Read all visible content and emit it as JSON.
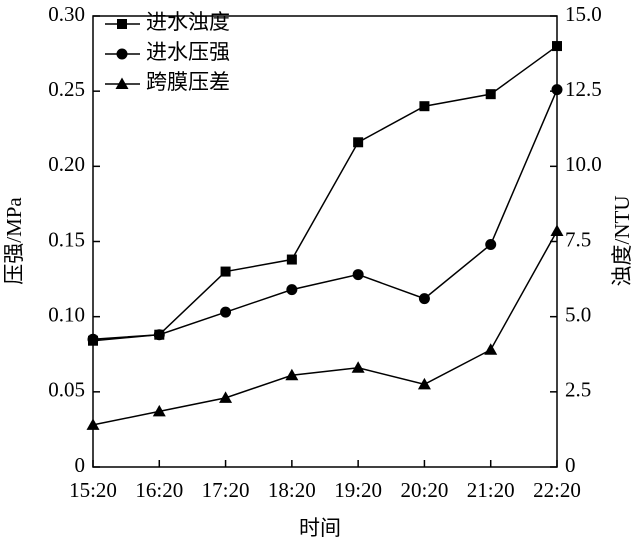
{
  "chart_data": {
    "type": "line",
    "x_label": "时间",
    "y_label": "压强/MPa",
    "y2_label": "浊度/NTU",
    "categories": [
      "15:20",
      "16:20",
      "17:20",
      "18:20",
      "19:20",
      "20:20",
      "21:20",
      "22:20"
    ],
    "series": [
      {
        "name": "进水浊度",
        "color": "#000000",
        "marker": "square",
        "axis": "y2",
        "values": [
          4.2,
          4.4,
          6.5,
          6.9,
          10.8,
          12.0,
          12.4,
          14.0
        ]
      },
      {
        "name": "进水压强",
        "color": "#000000",
        "marker": "circle",
        "values": [
          0.085,
          0.088,
          0.103,
          0.118,
          0.128,
          0.112,
          0.148,
          0.251
        ]
      },
      {
        "name": "跨膜压差",
        "color": "#000000",
        "marker": "triangle",
        "values": [
          0.028,
          0.037,
          0.046,
          0.061,
          0.066,
          0.055,
          0.078,
          0.157
        ]
      }
    ],
    "ylim": [
      0,
      0.3
    ],
    "yticks": [
      0,
      0.05,
      {
        "value": 0.1,
        "label": "0.10"
      },
      0.15,
      {
        "value": 0.2,
        "label": "0.20"
      },
      0.25,
      {
        "value": 0.3,
        "label": "0.30"
      }
    ],
    "y2lim": [
      0,
      15
    ],
    "y2ticks": [
      0,
      2.5,
      {
        "value": 5,
        "label": "5.0"
      },
      7.5,
      {
        "value": 10,
        "label": "10.0"
      },
      12.5,
      {
        "value": 15,
        "label": "15.0"
      }
    ],
    "legend": "upper left",
    "grid": false
  }
}
